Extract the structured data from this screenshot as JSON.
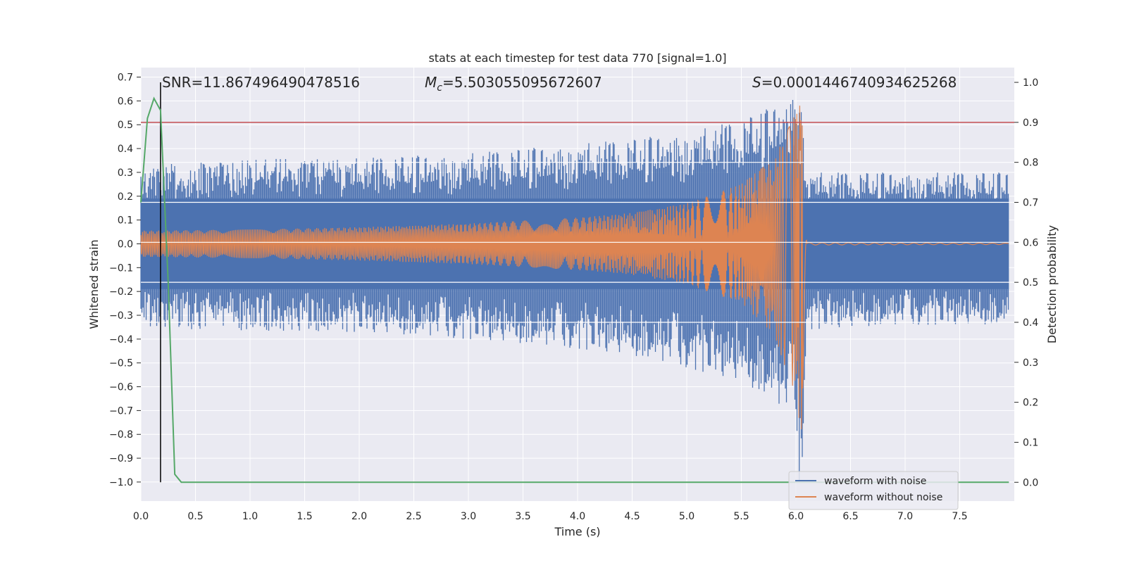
{
  "chart_data": {
    "type": "line",
    "title": "stats at each timestep for test data 770 [signal=1.0]",
    "xlabel": "Time (s)",
    "ylabel": "Whitened strain",
    "y2label": "Detection probability",
    "xlim": [
      0.0,
      8.0
    ],
    "ylim": [
      -1.08,
      0.74
    ],
    "y2lim": [
      -0.047,
      1.037
    ],
    "grid": true,
    "legend_position": "lower-right",
    "x_ticks": [
      "0.0",
      "0.5",
      "1.0",
      "1.5",
      "2.0",
      "2.5",
      "3.0",
      "3.5",
      "4.0",
      "4.5",
      "5.0",
      "5.5",
      "6.0",
      "6.5",
      "7.0",
      "7.5"
    ],
    "y_ticks": [
      "0.7",
      "0.6",
      "0.5",
      "0.4",
      "0.3",
      "0.2",
      "0.1",
      "0.0",
      "−0.1",
      "−0.2",
      "−0.3",
      "−0.4",
      "−0.5",
      "−0.6",
      "−0.7",
      "−0.8",
      "−0.9",
      "−1.0"
    ],
    "y2_ticks": [
      "1.0",
      "0.9",
      "0.8",
      "0.7",
      "0.6",
      "0.5",
      "0.4",
      "0.3",
      "0.2",
      "0.1",
      "0.0"
    ],
    "annotations": {
      "snr": "SNR=11.867496490478516",
      "mc_symbol": "M",
      "mc_sub": "c",
      "mc_value": "=5.503055095672607",
      "s_symbol": "S",
      "s_value": "=0.0001446740934625268"
    },
    "vline_x": 0.18,
    "threshold_probability": 0.9,
    "series": [
      {
        "name": "waveform with noise",
        "color": "#4c72b0",
        "envelope": {
          "t": [
            0.0,
            0.2,
            0.5,
            1.0,
            2.0,
            3.0,
            4.0,
            4.5,
            5.0,
            5.5,
            5.8,
            6.0,
            6.05,
            6.1,
            7.0,
            7.95
          ],
          "upper": [
            0.33,
            0.34,
            0.34,
            0.36,
            0.36,
            0.38,
            0.42,
            0.44,
            0.47,
            0.52,
            0.58,
            0.64,
            0.6,
            0.3,
            0.3,
            0.3
          ],
          "lower": [
            -0.35,
            -0.36,
            -0.36,
            -0.37,
            -0.37,
            -0.4,
            -0.44,
            -0.47,
            -0.52,
            -0.58,
            -0.66,
            -0.75,
            -1.0,
            -0.36,
            -0.34,
            -0.34
          ],
          "core": 0.19
        }
      },
      {
        "name": "waveform without noise",
        "color": "#dd8452",
        "envelope": {
          "t": [
            0.0,
            1.0,
            2.0,
            3.0,
            4.0,
            4.5,
            5.0,
            5.5,
            5.8,
            6.0,
            6.05,
            6.1,
            7.95
          ],
          "upper": [
            0.055,
            0.06,
            0.07,
            0.085,
            0.11,
            0.13,
            0.17,
            0.25,
            0.36,
            0.55,
            0.6,
            0.005,
            0.003
          ],
          "lower": [
            -0.055,
            -0.06,
            -0.07,
            -0.085,
            -0.11,
            -0.13,
            -0.17,
            -0.25,
            -0.38,
            -0.65,
            -0.8,
            -0.005,
            -0.003
          ]
        }
      },
      {
        "name": "detection probability",
        "color": "#55a868",
        "axis": "right",
        "x": [
          0.0,
          0.06,
          0.12,
          0.18,
          0.25,
          0.31,
          0.37,
          0.5,
          1.0,
          2.0,
          3.0,
          4.0,
          5.0,
          6.0,
          7.0,
          7.95
        ],
        "values": [
          0.7,
          0.91,
          0.96,
          0.93,
          0.5,
          0.02,
          0.0,
          0.0,
          0.0,
          0.0,
          0.0,
          0.0,
          0.0,
          0.0,
          0.0,
          0.0
        ]
      }
    ]
  }
}
